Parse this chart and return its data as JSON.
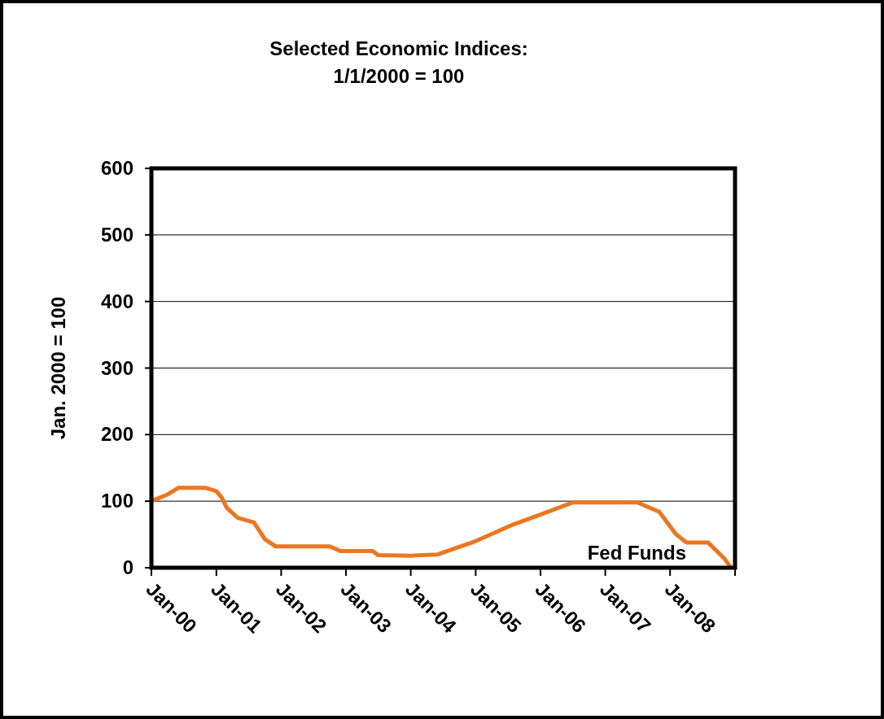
{
  "chart_data": {
    "type": "line",
    "title": "Selected Economic Indices:\n1/1/2000 = 100",
    "ylabel": "Jan. 2000 = 100",
    "x": [
      "2000-01",
      "2000-04",
      "2000-06",
      "2000-11",
      "2001-01",
      "2001-02",
      "2001-03",
      "2001-05",
      "2001-08",
      "2001-10",
      "2001-12",
      "2002-10",
      "2002-12",
      "2003-06",
      "2003-07",
      "2004-01",
      "2004-06",
      "2005-01",
      "2005-08",
      "2006-01",
      "2006-07",
      "2007-07",
      "2007-11",
      "2008-02",
      "2008-04",
      "2008-08",
      "2008-11",
      "2008-12"
    ],
    "series": [
      {
        "name": "Fed Funds",
        "color": "#ec7620",
        "values": [
          100,
          110,
          120,
          120,
          115,
          105,
          90,
          75,
          68,
          43,
          32,
          32,
          25,
          25,
          19,
          18,
          20,
          40,
          65,
          80,
          98,
          98,
          84,
          51,
          38,
          38,
          14,
          3
        ]
      }
    ],
    "xlim": [
      "2000-01",
      "2009-01"
    ],
    "xticks": [
      {
        "value": "2000-01",
        "label": "Jan-00"
      },
      {
        "value": "2001-01",
        "label": "Jan-01"
      },
      {
        "value": "2002-01",
        "label": "Jan-02"
      },
      {
        "value": "2003-01",
        "label": "Jan-03"
      },
      {
        "value": "2004-01",
        "label": "Jan-04"
      },
      {
        "value": "2005-01",
        "label": "Jan-05"
      },
      {
        "value": "2006-01",
        "label": "Jan-06"
      },
      {
        "value": "2007-01",
        "label": "Jan-07"
      },
      {
        "value": "2008-01",
        "label": "Jan-08"
      },
      {
        "value": "2009-01",
        "label": null
      }
    ],
    "ylim": [
      0,
      600
    ],
    "yticks": [
      0,
      100,
      200,
      300,
      400,
      500,
      600
    ],
    "grid": "y"
  }
}
